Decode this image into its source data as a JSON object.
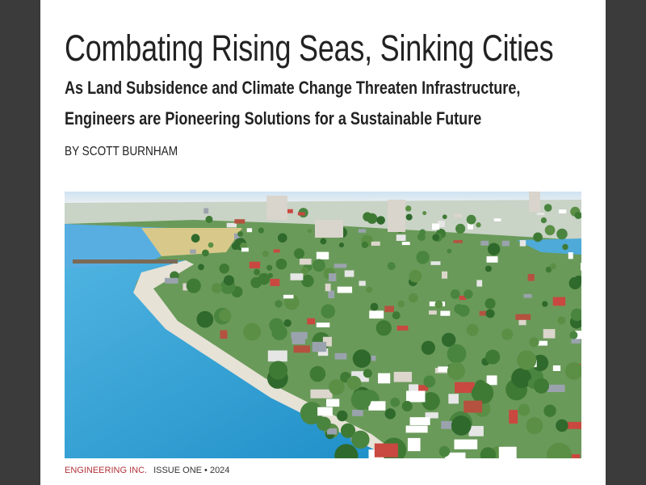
{
  "header": {
    "title": "Combating Rising Seas, Sinking Cities",
    "subtitle": "As Land Subsidence and Climate Change Threaten Infrastructure, Engineers are Pioneering Solutions for a Sustainable Future",
    "byline": "BY SCOTT BURNHAM"
  },
  "footer": {
    "publication": "ENGINEERING INC.",
    "issue": "ISSUE ONE • 2024"
  }
}
